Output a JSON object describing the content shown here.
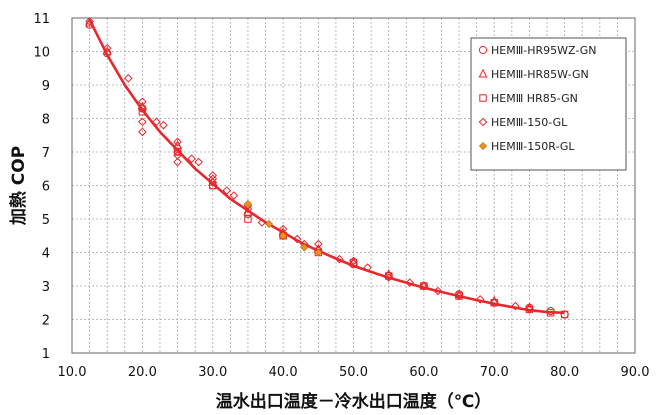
{
  "chart_data": {
    "type": "scatter",
    "title": "",
    "xlabel": "温水出口温度－冷水出口温度（℃）",
    "ylabel": "加熱 COP",
    "xlim": [
      10,
      90
    ],
    "ylim": [
      1,
      11
    ],
    "xticks": [
      10,
      20,
      30,
      40,
      50,
      60,
      70,
      80,
      90
    ],
    "xtick_labels": [
      "10.0",
      "20.0",
      "30.0",
      "40.0",
      "50.0",
      "60.0",
      "70.0",
      "80.0",
      "90.0"
    ],
    "yticks": [
      1,
      2,
      3,
      4,
      5,
      6,
      7,
      8,
      9,
      10,
      11
    ],
    "grid": true,
    "legend_position": "top-right",
    "series": [
      {
        "name": "HEMⅢ-HR95WZ-GN",
        "marker": "circle",
        "color": "#e8282d",
        "points": [
          [
            12.5,
            10.8
          ],
          [
            15,
            9.95
          ],
          [
            20,
            8.3
          ],
          [
            25,
            7.1
          ],
          [
            30,
            6.0
          ],
          [
            35,
            5.15
          ],
          [
            40,
            4.5
          ],
          [
            45,
            4.05
          ],
          [
            50,
            3.65
          ],
          [
            55,
            3.3
          ],
          [
            60,
            3.0
          ],
          [
            65,
            2.75
          ],
          [
            70,
            2.5
          ],
          [
            75,
            2.35
          ],
          [
            78,
            2.25
          ],
          [
            80,
            2.15
          ]
        ]
      },
      {
        "name": "HEMⅢ-HR85W-GN",
        "marker": "triangle",
        "color": "#e8282d",
        "points": [
          [
            12.5,
            10.85
          ],
          [
            15,
            10.0
          ],
          [
            20,
            8.35
          ],
          [
            25,
            7.2
          ],
          [
            30,
            6.1
          ],
          [
            35,
            5.2
          ],
          [
            40,
            4.6
          ],
          [
            45,
            4.1
          ],
          [
            50,
            3.7
          ],
          [
            55,
            3.35
          ],
          [
            60,
            3.0
          ],
          [
            65,
            2.75
          ],
          [
            70,
            2.55
          ],
          [
            75,
            2.35
          ]
        ]
      },
      {
        "name": "HEMⅢ HR85-GN",
        "marker": "square",
        "color": "#e8282d",
        "points": [
          [
            20,
            8.2
          ],
          [
            25,
            7.0
          ],
          [
            30,
            6.0
          ],
          [
            35,
            5.0
          ],
          [
            40,
            4.5
          ],
          [
            45,
            4.0
          ],
          [
            50,
            3.7
          ],
          [
            55,
            3.3
          ],
          [
            60,
            3.0
          ],
          [
            65,
            2.7
          ],
          [
            70,
            2.5
          ],
          [
            75,
            2.3
          ],
          [
            78,
            2.2
          ],
          [
            80,
            2.15
          ]
        ]
      },
      {
        "name": "HEMⅢ-150-GL",
        "marker": "diamond",
        "color": "#e8282d",
        "points": [
          [
            12.5,
            10.9
          ],
          [
            15,
            10.1
          ],
          [
            18,
            9.2
          ],
          [
            20,
            8.5
          ],
          [
            20,
            8.3
          ],
          [
            20,
            7.9
          ],
          [
            20,
            7.6
          ],
          [
            22,
            7.9
          ],
          [
            23,
            7.8
          ],
          [
            25,
            7.3
          ],
          [
            25,
            7.0
          ],
          [
            25,
            6.9
          ],
          [
            25,
            6.7
          ],
          [
            27,
            6.8
          ],
          [
            28,
            6.7
          ],
          [
            30,
            6.3
          ],
          [
            30,
            6.2
          ],
          [
            30,
            6.1
          ],
          [
            32,
            5.85
          ],
          [
            33,
            5.7
          ],
          [
            35,
            5.4
          ],
          [
            35,
            5.3
          ],
          [
            37,
            4.9
          ],
          [
            40,
            4.7
          ],
          [
            40,
            4.55
          ],
          [
            42,
            4.4
          ],
          [
            43,
            4.25
          ],
          [
            45,
            4.25
          ],
          [
            48,
            3.8
          ],
          [
            50,
            3.75
          ],
          [
            52,
            3.55
          ],
          [
            55,
            3.25
          ],
          [
            58,
            3.1
          ],
          [
            60,
            3.0
          ],
          [
            62,
            2.85
          ],
          [
            65,
            2.7
          ],
          [
            68,
            2.6
          ],
          [
            70,
            2.5
          ],
          [
            73,
            2.4
          ],
          [
            75,
            2.3
          ]
        ]
      },
      {
        "name": "HEMⅢ-150R-GL",
        "marker": "diamond-filled",
        "color": "#f0901e",
        "points": [
          [
            35,
            5.45
          ],
          [
            38,
            4.85
          ],
          [
            40,
            4.5
          ],
          [
            43,
            4.15
          ],
          [
            45,
            4.0
          ]
        ]
      }
    ],
    "trendline": {
      "color": "#e8282d",
      "points": [
        [
          12.5,
          10.95
        ],
        [
          15,
          9.9
        ],
        [
          17.5,
          9.0
        ],
        [
          20,
          8.25
        ],
        [
          22.5,
          7.6
        ],
        [
          25,
          7.05
        ],
        [
          27.5,
          6.5
        ],
        [
          30,
          6.05
        ],
        [
          32.5,
          5.6
        ],
        [
          35,
          5.25
        ],
        [
          37.5,
          4.9
        ],
        [
          40,
          4.6
        ],
        [
          42.5,
          4.3
        ],
        [
          45,
          4.05
        ],
        [
          47.5,
          3.82
        ],
        [
          50,
          3.6
        ],
        [
          52.5,
          3.42
        ],
        [
          55,
          3.25
        ],
        [
          57.5,
          3.1
        ],
        [
          60,
          2.95
        ],
        [
          62.5,
          2.82
        ],
        [
          65,
          2.7
        ],
        [
          67.5,
          2.58
        ],
        [
          70,
          2.47
        ],
        [
          72.5,
          2.37
        ],
        [
          75,
          2.28
        ],
        [
          77.5,
          2.22
        ],
        [
          80,
          2.2
        ]
      ]
    }
  }
}
